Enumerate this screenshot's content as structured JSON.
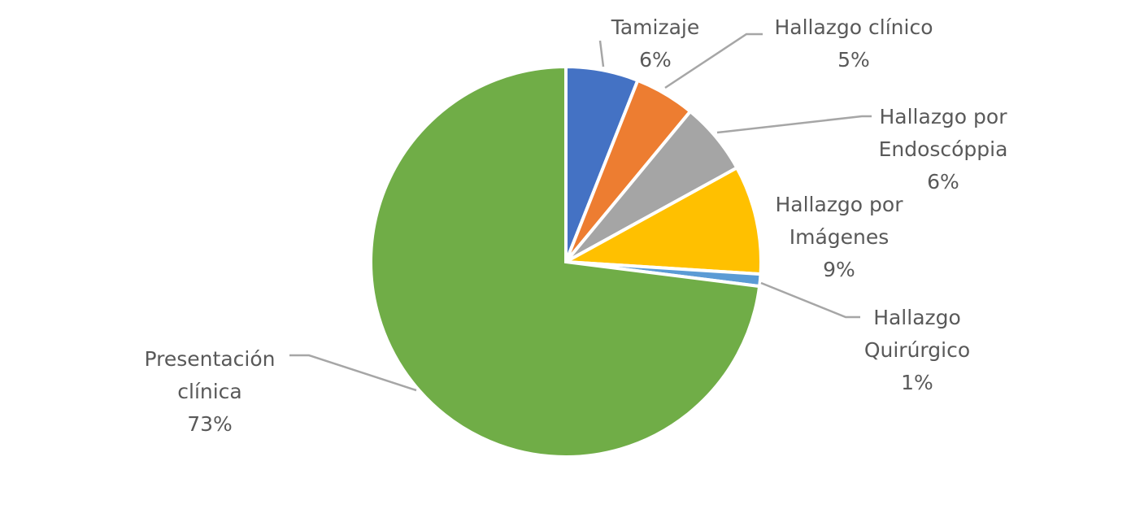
{
  "chart_data": {
    "type": "pie",
    "title": "",
    "slices": [
      {
        "label_lines": [
          "Tamizaje"
        ],
        "value": 6,
        "percent_label": "6%",
        "color": "#4472C4"
      },
      {
        "label_lines": [
          "Hallazgo clínico"
        ],
        "value": 5,
        "percent_label": "5%",
        "color": "#ED7D31"
      },
      {
        "label_lines": [
          "Hallazgo por",
          "Endoscóppia"
        ],
        "value": 6,
        "percent_label": "6%",
        "color": "#A5A5A5"
      },
      {
        "label_lines": [
          "Hallazgo por",
          "Imágenes"
        ],
        "value": 9,
        "percent_label": "9%",
        "color": "#FFC000"
      },
      {
        "label_lines": [
          "Hallazgo",
          "Quirúrgico"
        ],
        "value": 1,
        "percent_label": "1%",
        "color": "#5B9BD5"
      },
      {
        "label_lines": [
          "Presentación",
          "clínica"
        ],
        "value": 73,
        "percent_label": "73%",
        "color": "#70AD47"
      }
    ],
    "start_angle_deg": 0,
    "direction": "clockwise",
    "legend": "none",
    "data_labels": "outside with leader lines"
  }
}
